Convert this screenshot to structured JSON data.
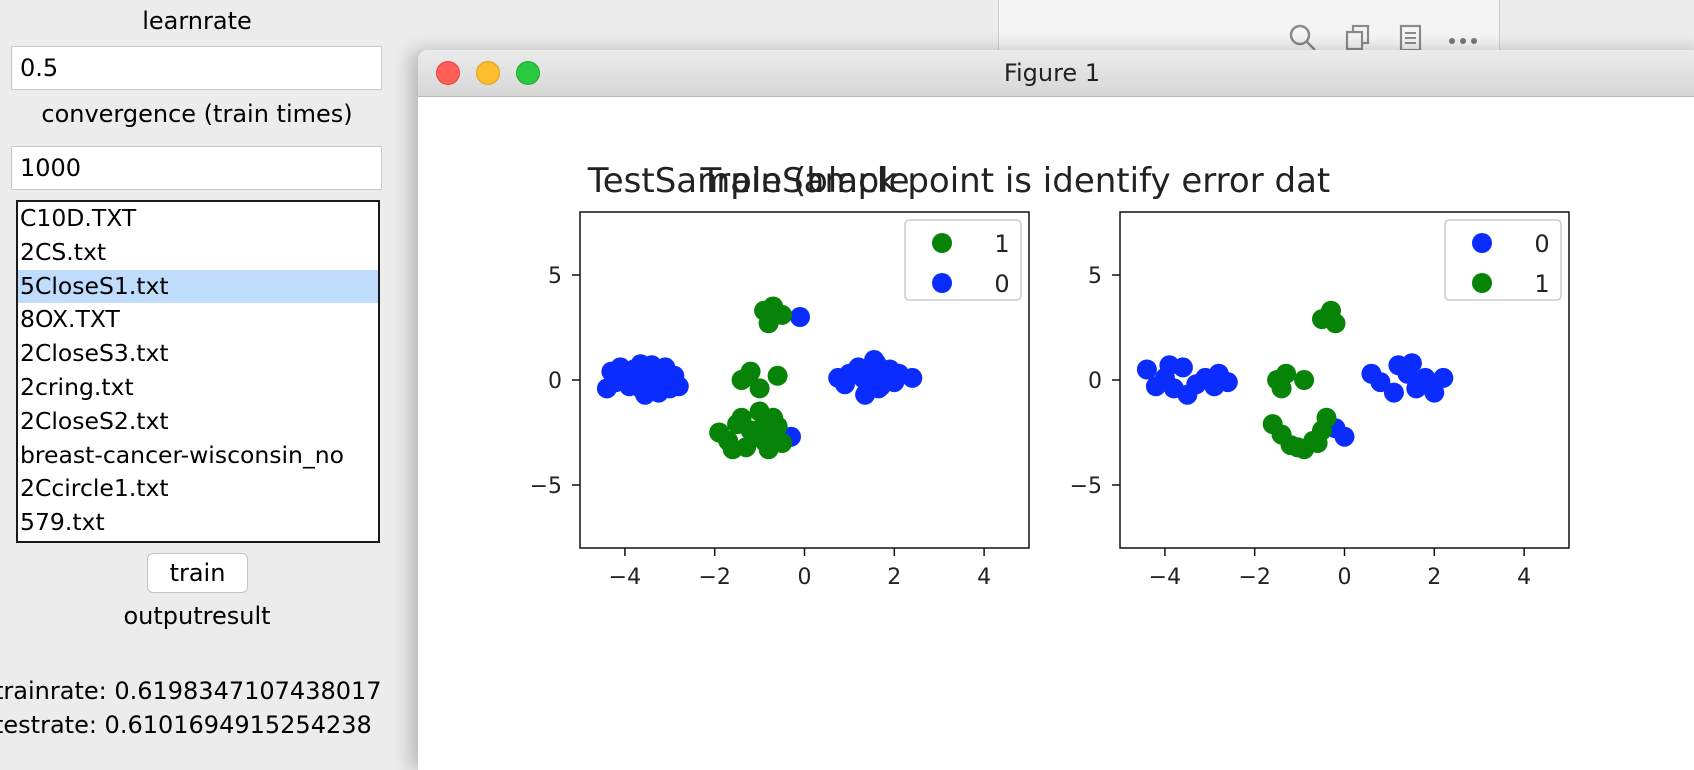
{
  "panel": {
    "learnrate_label": "learnrate",
    "learnrate_value": "0.5",
    "convergence_label": "convergence (train times)",
    "convergence_value": "1000",
    "files": [
      {
        "name": "C10D.TXT",
        "selected": false
      },
      {
        "name": "2CS.txt",
        "selected": false
      },
      {
        "name": "5CloseS1.txt",
        "selected": true
      },
      {
        "name": "8OX.TXT",
        "selected": false
      },
      {
        "name": "2CloseS3.txt",
        "selected": false
      },
      {
        "name": "2cring.txt",
        "selected": false
      },
      {
        "name": "2CloseS2.txt",
        "selected": false
      },
      {
        "name": "breast-cancer-wisconsin_no",
        "selected": false
      },
      {
        "name": "2Ccircle1.txt",
        "selected": false
      },
      {
        "name": "579.txt",
        "selected": false
      }
    ],
    "train_label": "train",
    "output_label": "outputresult",
    "trainrate_text": "trainrate: 0.6198347107438017",
    "testrate_text": "testrate: 0.6101694915254238"
  },
  "background_window": {
    "icons": [
      "search-icon",
      "copy-icon",
      "document-icon",
      "more-icon"
    ]
  },
  "figure_window": {
    "title": "Figure 1"
  },
  "colors": {
    "class_0": "#0b2cff",
    "class_1": "#078307",
    "selection": "#bfdcfd"
  },
  "chart_data": [
    {
      "type": "scatter",
      "title": "TrainSample",
      "xlim": [
        -5,
        5
      ],
      "ylim": [
        -8,
        8
      ],
      "xticks": [
        "−4",
        "−2",
        "0",
        "2",
        "4"
      ],
      "yticks": [
        "5",
        "0",
        "−5"
      ],
      "xtick_values": [
        -4,
        -2,
        0,
        2,
        4
      ],
      "ytick_values": [
        5,
        0,
        -5
      ],
      "legend": {
        "placement": "upper right",
        "entries": [
          {
            "label": "1",
            "color": "#078307"
          },
          {
            "label": "0",
            "color": "#0b2cff"
          }
        ]
      },
      "series": [
        {
          "name": "0",
          "color": "#0b2cff",
          "points": [
            [
              -4.3,
              0.4
            ],
            [
              -4.1,
              0.6
            ],
            [
              -4.0,
              0.1
            ],
            [
              -3.9,
              -0.3
            ],
            [
              -3.8,
              0.5
            ],
            [
              -3.7,
              0.0
            ],
            [
              -3.6,
              -0.5
            ],
            [
              -3.5,
              0.3
            ],
            [
              -3.4,
              0.7
            ],
            [
              -3.3,
              -0.2
            ],
            [
              -3.2,
              0.1
            ],
            [
              -3.1,
              0.6
            ],
            [
              -3.0,
              -0.4
            ],
            [
              -2.9,
              0.2
            ],
            [
              -2.8,
              -0.3
            ],
            [
              -4.4,
              -0.4
            ],
            [
              -4.2,
              -0.1
            ],
            [
              -3.55,
              -0.7
            ],
            [
              -3.25,
              -0.6
            ],
            [
              -3.65,
              0.75
            ],
            [
              1.0,
              0.3
            ],
            [
              1.2,
              0.6
            ],
            [
              1.3,
              0.1
            ],
            [
              1.4,
              -0.2
            ],
            [
              1.5,
              0.4
            ],
            [
              1.6,
              0.8
            ],
            [
              1.7,
              -0.3
            ],
            [
              1.8,
              0.2
            ],
            [
              1.9,
              0.5
            ],
            [
              2.0,
              -0.1
            ],
            [
              2.1,
              0.3
            ],
            [
              2.4,
              0.1
            ],
            [
              1.35,
              -0.7
            ],
            [
              1.65,
              -0.4
            ],
            [
              0.75,
              0.1
            ],
            [
              0.9,
              -0.2
            ],
            [
              1.55,
              0.95
            ],
            [
              -0.3,
              -2.7
            ],
            [
              -0.5,
              -2.9
            ],
            [
              -0.1,
              3.0
            ]
          ]
        },
        {
          "name": "1",
          "color": "#078307",
          "points": [
            [
              -0.9,
              3.3
            ],
            [
              -0.7,
              3.5
            ],
            [
              -0.5,
              3.1
            ],
            [
              -0.8,
              2.7
            ],
            [
              -1.4,
              0.0
            ],
            [
              -1.2,
              0.4
            ],
            [
              -1.0,
              -0.4
            ],
            [
              -0.6,
              0.2
            ],
            [
              -1.9,
              -2.5
            ],
            [
              -1.7,
              -2.9
            ],
            [
              -1.5,
              -2.1
            ],
            [
              -1.3,
              -3.2
            ],
            [
              -1.1,
              -2.7
            ],
            [
              -0.9,
              -2.1
            ],
            [
              -0.7,
              -2.5
            ],
            [
              -0.5,
              -3.0
            ],
            [
              -0.8,
              -3.3
            ],
            [
              -1.6,
              -3.3
            ],
            [
              -1.2,
              -2.4
            ],
            [
              -1.0,
              -1.5
            ],
            [
              -0.7,
              -1.8
            ],
            [
              -1.4,
              -1.8
            ],
            [
              -0.9,
              -2.9
            ],
            [
              -0.6,
              -2.2
            ],
            [
              -1.25,
              0.2
            ]
          ]
        }
      ]
    },
    {
      "type": "scatter",
      "title": "TestSample (black point is identify error dat",
      "xlim": [
        -5,
        5
      ],
      "ylim": [
        -8,
        8
      ],
      "xticks": [
        "−4",
        "−2",
        "0",
        "2",
        "4"
      ],
      "yticks": [
        "5",
        "0",
        "−5"
      ],
      "xtick_values": [
        -4,
        -2,
        0,
        2,
        4
      ],
      "ytick_values": [
        5,
        0,
        -5
      ],
      "legend": {
        "placement": "upper right",
        "entries": [
          {
            "label": "0",
            "color": "#0b2cff"
          },
          {
            "label": "1",
            "color": "#078307"
          }
        ]
      },
      "series": [
        {
          "name": "0",
          "color": "#0b2cff",
          "points": [
            [
              -4.4,
              0.5
            ],
            [
              -4.2,
              -0.3
            ],
            [
              -4.0,
              0.1
            ],
            [
              -3.9,
              0.7
            ],
            [
              -3.8,
              -0.4
            ],
            [
              -3.6,
              0.6
            ],
            [
              -3.5,
              -0.7
            ],
            [
              -3.3,
              -0.2
            ],
            [
              -3.1,
              0.1
            ],
            [
              -2.9,
              -0.3
            ],
            [
              -2.8,
              0.3
            ],
            [
              -2.6,
              -0.1
            ],
            [
              0.6,
              0.3
            ],
            [
              0.8,
              -0.1
            ],
            [
              1.1,
              -0.6
            ],
            [
              1.2,
              0.7
            ],
            [
              1.4,
              0.3
            ],
            [
              1.5,
              0.8
            ],
            [
              1.6,
              -0.4
            ],
            [
              1.8,
              0.1
            ],
            [
              2.0,
              -0.6
            ],
            [
              2.2,
              0.1
            ],
            [
              -0.2,
              -2.3
            ],
            [
              0.0,
              -2.7
            ]
          ]
        },
        {
          "name": "1",
          "color": "#078307",
          "points": [
            [
              -0.3,
              3.3
            ],
            [
              -0.5,
              2.9
            ],
            [
              -0.2,
              2.7
            ],
            [
              -1.5,
              0.0
            ],
            [
              -1.3,
              0.3
            ],
            [
              -0.9,
              0.0
            ],
            [
              -1.4,
              -0.4
            ],
            [
              -1.6,
              -2.1
            ],
            [
              -1.4,
              -2.6
            ],
            [
              -1.2,
              -3.1
            ],
            [
              -0.9,
              -3.3
            ],
            [
              -0.7,
              -2.9
            ],
            [
              -0.5,
              -2.4
            ],
            [
              -0.4,
              -1.8
            ],
            [
              -0.6,
              -3.0
            ],
            [
              -1.05,
              -3.2
            ]
          ]
        }
      ]
    }
  ]
}
